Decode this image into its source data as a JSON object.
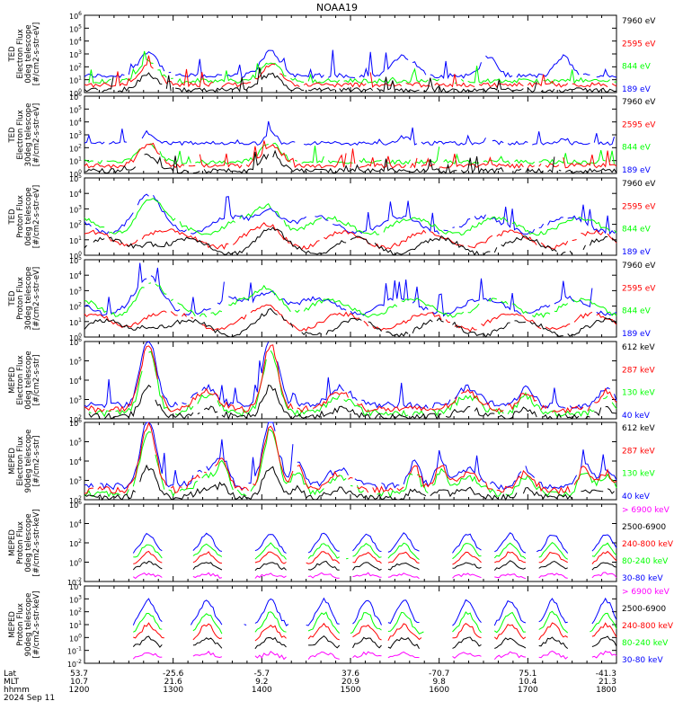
{
  "title": "NOAA19",
  "colors": {
    "black": "#000000",
    "blue": "#0000ff",
    "red": "#ff0000",
    "green": "#00ff00",
    "magenta": "#ff00ff"
  },
  "footer": {
    "row_labels": [
      "Lat",
      "MLT",
      "hhmm"
    ],
    "date": "2024 Sep 11",
    "lat": [
      "53.7",
      "-25.6",
      "-5.7",
      "37.6",
      "-70.7",
      "75.1",
      "-41.3"
    ],
    "mlt": [
      "10.7",
      "21.6",
      "9.2",
      "20.9",
      "9.8",
      "10.4",
      "21.3"
    ],
    "hhmm": [
      "1200",
      "1300",
      "1400",
      "1500",
      "1600",
      "1700",
      "1800"
    ]
  },
  "chart_data": [
    {
      "type": "line",
      "ylabel": [
        "TED",
        "Electron Flux",
        "0deg telescope",
        "[#/cm2-s-str-eV]"
      ],
      "yscale": "log",
      "ylim_exp": [
        0,
        6
      ],
      "tick_labels": [
        "10^0",
        "10^1",
        "10^2",
        "10^3",
        "10^4",
        "10^5",
        "10^6"
      ],
      "legend": [
        {
          "label": "7960 eV",
          "color": "black"
        },
        {
          "label": "2595 eV",
          "color": "red"
        },
        {
          "label": "844 eV",
          "color": "green"
        },
        {
          "label": "189 eV",
          "color": "blue"
        }
      ]
    },
    {
      "type": "line",
      "ylabel": [
        "TED",
        "Electron Flux",
        "30deg telescope",
        "[#/cm2-s-str-eV]"
      ],
      "yscale": "log",
      "ylim_exp": [
        0,
        6
      ],
      "tick_labels": [
        "10^0",
        "10^1",
        "10^2",
        "10^3",
        "10^4",
        "10^5",
        "10^6"
      ],
      "legend": [
        {
          "label": "7960 eV",
          "color": "black"
        },
        {
          "label": "2595 eV",
          "color": "red"
        },
        {
          "label": "844 eV",
          "color": "green"
        },
        {
          "label": "189 eV",
          "color": "blue"
        }
      ]
    },
    {
      "type": "line",
      "ylabel": [
        "TED",
        "Proton Flux",
        "0deg telescope",
        "[#/cm2-s-str-eV]"
      ],
      "yscale": "log",
      "ylim_exp": [
        0,
        5
      ],
      "tick_labels": [
        "10^0",
        "10^1",
        "10^2",
        "10^3",
        "10^4",
        "10^5"
      ],
      "legend": [
        {
          "label": "7960 eV",
          "color": "black"
        },
        {
          "label": "2595 eV",
          "color": "red"
        },
        {
          "label": "844 eV",
          "color": "green"
        },
        {
          "label": "189 eV",
          "color": "blue"
        }
      ]
    },
    {
      "type": "line",
      "ylabel": [
        "TED",
        "Proton Flux",
        "30deg telescope",
        "[#/cm2-s-str-eV]"
      ],
      "yscale": "log",
      "ylim_exp": [
        0,
        5
      ],
      "tick_labels": [
        "10^0",
        "10^1",
        "10^2",
        "10^3",
        "10^4",
        "10^5"
      ],
      "legend": [
        {
          "label": "7960 eV",
          "color": "black"
        },
        {
          "label": "2595 eV",
          "color": "red"
        },
        {
          "label": "844 eV",
          "color": "green"
        },
        {
          "label": "189 eV",
          "color": "blue"
        }
      ]
    },
    {
      "type": "line",
      "ylabel": [
        "MEPED",
        "Electron Flux",
        "0deg telescope",
        "[#/cm2-s-str]"
      ],
      "yscale": "log",
      "ylim_exp": [
        2,
        6
      ],
      "tick_labels": [
        "10^2",
        "10^3",
        "10^4",
        "10^5",
        "10^6"
      ],
      "legend": [
        {
          "label": "612 keV",
          "color": "black"
        },
        {
          "label": "287 keV",
          "color": "red"
        },
        {
          "label": "130 keV",
          "color": "green"
        },
        {
          "label": "40 keV",
          "color": "blue"
        }
      ]
    },
    {
      "type": "line",
      "ylabel": [
        "MEPED",
        "Electron Flux",
        "90deg telescope",
        "[#/cm2-s-str]"
      ],
      "yscale": "log",
      "ylim_exp": [
        2,
        6
      ],
      "tick_labels": [
        "10^2",
        "10^3",
        "10^4",
        "10^5",
        "10^6"
      ],
      "legend": [
        {
          "label": "612 keV",
          "color": "black"
        },
        {
          "label": "287 keV",
          "color": "red"
        },
        {
          "label": "130 keV",
          "color": "green"
        },
        {
          "label": "40 keV",
          "color": "blue"
        }
      ]
    },
    {
      "type": "line",
      "ylabel": [
        "MEPED",
        "Proton Flux",
        "0deg telescope",
        "[#/cm2-s-str-keV]"
      ],
      "yscale": "log",
      "ylim_exp": [
        -2,
        6
      ],
      "tick_labels": [
        "10^-2",
        "10^0",
        "10^2",
        "10^4",
        "10^6"
      ],
      "legend": [
        {
          "label": "> 6900 keV",
          "color": "magenta"
        },
        {
          "label": "2500-6900",
          "color": "black"
        },
        {
          "label": "240-800 keV",
          "color": "red"
        },
        {
          "label": "80-240 keV",
          "color": "green"
        },
        {
          "label": "30-80 keV",
          "color": "blue"
        }
      ]
    },
    {
      "type": "line",
      "ylabel": [
        "MEPED",
        "Proton Flux",
        "90deg telescope",
        "[#/cm2-s-str-keV]"
      ],
      "yscale": "log",
      "ylim_exp": [
        -2,
        4
      ],
      "tick_labels": [
        "10^-2",
        "10^-1",
        "10^0",
        "10^1",
        "10^2",
        "10^3",
        "10^4"
      ],
      "legend": [
        {
          "label": "> 6900 keV",
          "color": "magenta"
        },
        {
          "label": "2500-6900",
          "color": "black"
        },
        {
          "label": "240-800 keV",
          "color": "red"
        },
        {
          "label": "80-240 keV",
          "color": "green"
        },
        {
          "label": "30-80 keV",
          "color": "blue"
        }
      ]
    }
  ]
}
